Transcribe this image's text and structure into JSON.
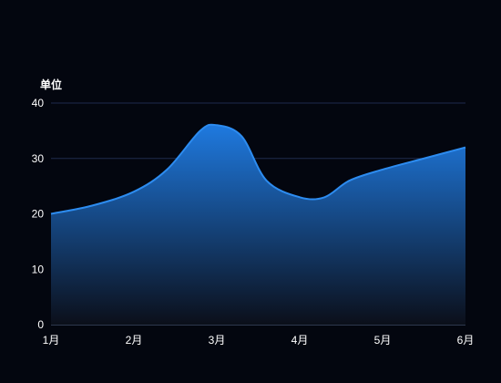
{
  "chart_data": {
    "type": "area",
    "unit_label": "单位",
    "categories": [
      "1月",
      "2月",
      "3月",
      "4月",
      "5月",
      "6月"
    ],
    "x": [
      1,
      1.5,
      2,
      2.4,
      2.8,
      3,
      3.3,
      3.6,
      4,
      4.3,
      4.6,
      5,
      5.5,
      6
    ],
    "y": [
      20,
      21.5,
      24,
      28,
      35,
      36,
      34,
      26,
      23,
      23,
      26,
      28,
      30,
      32
    ],
    "ylim": [
      0,
      40
    ],
    "yticks": [
      0,
      10,
      20,
      30,
      40
    ],
    "smooth": true,
    "grid": true,
    "colors": {
      "line": "#2d8cf0",
      "fill_top": "#1f7ae0",
      "fill_bottom": "#0b0f1a",
      "grid": "#1e2b4d",
      "baseline": "#5a6b8c"
    }
  }
}
